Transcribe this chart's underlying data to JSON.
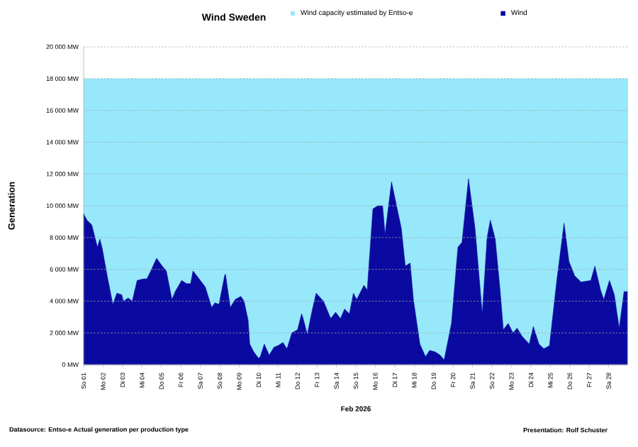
{
  "chart_data": {
    "type": "area",
    "title": "Wind Sweden",
    "xlabel": "Feb 2026",
    "ylabel": "Generation",
    "series": [
      {
        "name": "Wind",
        "color": "#0a0aa0",
        "x": [
          "2026-02-01T00:00",
          "2026-02-01T04:00",
          "2026-02-01T10:00",
          "2026-02-01T13:00",
          "2026-02-01T17:00",
          "2026-02-01T20:00",
          "2026-02-01T23:00",
          "2026-02-02T05:00",
          "2026-02-02T12:00",
          "2026-02-02T17:00",
          "2026-02-02T23:00",
          "2026-02-03T01:00",
          "2026-02-03T07:00",
          "2026-02-03T12:00",
          "2026-02-03T18:00",
          "2026-02-04T02:00",
          "2026-02-04T06:00",
          "2026-02-04T10:00",
          "2026-02-04T18:00",
          "2026-02-05T01:00",
          "2026-02-05T06:00",
          "2026-02-05T13:00",
          "2026-02-05T17:00",
          "2026-02-06T01:00",
          "2026-02-06T07:00",
          "2026-02-06T12:00",
          "2026-02-06T15:00",
          "2026-02-06T21:00",
          "2026-02-07T06:00",
          "2026-02-07T14:00",
          "2026-02-07T18:00",
          "2026-02-07T23:00",
          "2026-02-08T06:00",
          "2026-02-08T07:00",
          "2026-02-08T13:00",
          "2026-02-08T19:00",
          "2026-02-09T02:00",
          "2026-02-09T06:00",
          "2026-02-09T11:00",
          "2026-02-09T13:00",
          "2026-02-09T18:00",
          "2026-02-10T00:00",
          "2026-02-10T02:00",
          "2026-02-10T07:00",
          "2026-02-10T13:00",
          "2026-02-10T19:00",
          "2026-02-11T00:00",
          "2026-02-11T06:00",
          "2026-02-11T11:00",
          "2026-02-11T17:00",
          "2026-02-12T00:00",
          "2026-02-12T05:00",
          "2026-02-12T07:00",
          "2026-02-12T12:00",
          "2026-02-12T18:00",
          "2026-02-12T23:00",
          "2026-02-13T08:00",
          "2026-02-13T17:00",
          "2026-02-13T23:00",
          "2026-02-14T05:00",
          "2026-02-14T10:00",
          "2026-02-14T16:00",
          "2026-02-14T21:00",
          "2026-02-15T01:00",
          "2026-02-15T10:00",
          "2026-02-15T14:00",
          "2026-02-15T21:00",
          "2026-02-16T03:00",
          "2026-02-16T09:00",
          "2026-02-16T12:00",
          "2026-02-16T20:00",
          "2026-02-17T03:00",
          "2026-02-17T08:00",
          "2026-02-17T13:00",
          "2026-02-17T19:00",
          "2026-02-17T23:00",
          "2026-02-18T07:00",
          "2026-02-18T14:00",
          "2026-02-18T19:00",
          "2026-02-19T02:00",
          "2026-02-19T08:00",
          "2026-02-19T13:00",
          "2026-02-19T22:00",
          "2026-02-20T06:00",
          "2026-02-20T11:00",
          "2026-02-20T19:00",
          "2026-02-21T03:00",
          "2026-02-21T09:00",
          "2026-02-21T12:00",
          "2026-02-21T18:00",
          "2026-02-21T22:00",
          "2026-02-22T04:00",
          "2026-02-22T10:00",
          "2026-02-22T14:00",
          "2026-02-22T20:00",
          "2026-02-23T02:00",
          "2026-02-23T07:00",
          "2026-02-23T13:00",
          "2026-02-23T22:00",
          "2026-02-24T03:00",
          "2026-02-24T10:00",
          "2026-02-24T16:00",
          "2026-02-24T23:00",
          "2026-02-25T08:00",
          "2026-02-25T17:00",
          "2026-02-25T23:00",
          "2026-02-26T06:00",
          "2026-02-26T14:00",
          "2026-02-27T02:00",
          "2026-02-27T07:00",
          "2026-02-27T14:00",
          "2026-02-27T18:00",
          "2026-02-28T01:00",
          "2026-02-28T07:00",
          "2026-02-28T13:00",
          "2026-02-28T19:00",
          "2026-02-28T23:00"
        ],
        "values": [
          9500,
          9100,
          8800,
          8200,
          7400,
          7900,
          7300,
          5600,
          3800,
          4500,
          4400,
          4000,
          4200,
          4000,
          5300,
          5400,
          5400,
          5800,
          6700,
          6200,
          5900,
          4100,
          4600,
          5300,
          5100,
          5100,
          5900,
          5500,
          4900,
          3600,
          3900,
          3800,
          5600,
          5700,
          3600,
          4100,
          4300,
          4000,
          2800,
          1300,
          800,
          400,
          500,
          1300,
          600,
          1100,
          1200,
          1400,
          1000,
          2000,
          2200,
          3200,
          2900,
          1900,
          3400,
          4500,
          4000,
          2900,
          3300,
          2900,
          3500,
          3200,
          4500,
          4100,
          5000,
          4700,
          9800,
          10000,
          10000,
          8200,
          11500,
          9800,
          8600,
          6200,
          6400,
          4100,
          1300,
          500,
          900,
          800,
          600,
          300,
          2600,
          7400,
          7700,
          11700,
          8600,
          5000,
          3200,
          8000,
          9100,
          7900,
          4700,
          2200,
          2600,
          2000,
          2300,
          1800,
          1300,
          2400,
          1300,
          1000,
          1200,
          5300,
          8900,
          6500,
          5600,
          5200,
          5300,
          6200,
          4700,
          4100,
          5300,
          4400,
          2300,
          4600,
          4600
        ]
      }
    ],
    "xlim": [
      "2026-02-01",
      "2026-03-01"
    ],
    "ylim": [
      0,
      20000
    ],
    "xticks": [
      {
        "value": "2026-02-01",
        "label": "So 01"
      },
      {
        "value": "2026-02-02",
        "label": "Mo 02"
      },
      {
        "value": "2026-02-03",
        "label": "Di 03"
      },
      {
        "value": "2026-02-04",
        "label": "Mi 04"
      },
      {
        "value": "2026-02-05",
        "label": "Do 05"
      },
      {
        "value": "2026-02-06",
        "label": "Fr 06"
      },
      {
        "value": "2026-02-07",
        "label": "Sa 07"
      },
      {
        "value": "2026-02-08",
        "label": "So 08"
      },
      {
        "value": "2026-02-09",
        "label": "Mo 09"
      },
      {
        "value": "2026-02-10",
        "label": "Di 10"
      },
      {
        "value": "2026-02-11",
        "label": "Mi 11"
      },
      {
        "value": "2026-02-12",
        "label": "Do 12"
      },
      {
        "value": "2026-02-13",
        "label": "Fr 13"
      },
      {
        "value": "2026-02-14",
        "label": "Sa 14"
      },
      {
        "value": "2026-02-15",
        "label": "So 15"
      },
      {
        "value": "2026-02-16",
        "label": "Mo 16"
      },
      {
        "value": "2026-02-17",
        "label": "Di 17"
      },
      {
        "value": "2026-02-18",
        "label": "Mi 18"
      },
      {
        "value": "2026-02-19",
        "label": "Do 19"
      },
      {
        "value": "2026-02-20",
        "label": "Fr 20"
      },
      {
        "value": "2026-02-21",
        "label": "Sa 21"
      },
      {
        "value": "2026-02-22",
        "label": "So 22"
      },
      {
        "value": "2026-02-23",
        "label": "Mo 23"
      },
      {
        "value": "2026-02-24",
        "label": "Di 24"
      },
      {
        "value": "2026-02-25",
        "label": "Mi 25"
      },
      {
        "value": "2026-02-26",
        "label": "Do 26"
      },
      {
        "value": "2026-02-27",
        "label": "Fr 27"
      },
      {
        "value": "2026-02-28",
        "label": "Sa 28"
      }
    ],
    "yticks": [
      {
        "value": 0,
        "label": "0 MW"
      },
      {
        "value": 2000,
        "label": "2 000 MW"
      },
      {
        "value": 4000,
        "label": "4 000 MW"
      },
      {
        "value": 6000,
        "label": "6 000 MW"
      },
      {
        "value": 8000,
        "label": "8 000 MW"
      },
      {
        "value": 10000,
        "label": "10 000 MW"
      },
      {
        "value": 12000,
        "label": "12 000 MW"
      },
      {
        "value": 14000,
        "label": "14 000 MW"
      },
      {
        "value": 16000,
        "label": "16 000 MW"
      },
      {
        "value": 18000,
        "label": "18 000 MW"
      },
      {
        "value": 20000,
        "label": "20 000 MW"
      }
    ],
    "bands": [
      {
        "axis": "y",
        "from": 0,
        "to": 18000,
        "label": "Wind capacity estimated by Entso-e",
        "color": "#96e8fa"
      }
    ],
    "grid": "y",
    "legend": "top",
    "annotations": [
      "Datasource: Entso-e  Actual generation per production type",
      "Presentation: Rolf Schuster"
    ]
  }
}
